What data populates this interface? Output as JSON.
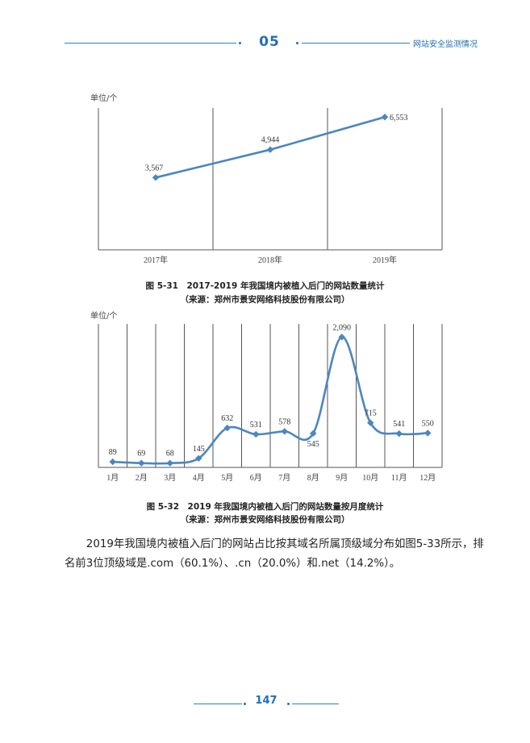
{
  "header": {
    "chapter": "05",
    "title": "网站安全监测情况"
  },
  "charts": {
    "yearly": {
      "caption": "图 5-31　2017-2019 年我国境内被植入后门的网站数量统计",
      "source": "（来源：郑州市景安网络科技股份有限公司）"
    },
    "monthly": {
      "caption": "图 5-32　2019 年我国境内被植入后门的网站数量按月度统计",
      "source": "（来源：郑州市景安网络科技股份有限公司）"
    }
  },
  "paragraph": "2019年我国境内被植入后门的网站占比按其域名所属顶级域分布如图5-33所示，排名前3位顶级域是.com（60.1%）、.cn（20.0%）和.net（14.2%）。",
  "footer": {
    "page_number": "147"
  },
  "colors": {
    "accent": "#1f6fb5",
    "series": "#4a86c0",
    "grid": "#555555"
  },
  "chart_data": [
    {
      "type": "line",
      "ylabel": "单位/个",
      "categories": [
        "2017年",
        "2018年",
        "2019年"
      ],
      "values": [
        3567,
        4944,
        6553
      ],
      "data_labels": [
        "3,567",
        "4,944",
        "6,553"
      ],
      "ylim": [
        0,
        7000
      ],
      "grid": "vertical",
      "marker": "diamond"
    },
    {
      "type": "line",
      "ylabel": "单位/个",
      "categories": [
        "1月",
        "2月",
        "3月",
        "4月",
        "5月",
        "6月",
        "7月",
        "8月",
        "9月",
        "10月",
        "11月",
        "12月"
      ],
      "values": [
        89,
        69,
        68,
        145,
        632,
        531,
        578,
        545,
        2090,
        715,
        541,
        550
      ],
      "data_labels": [
        "89",
        "69",
        "68",
        "145",
        "632",
        "531",
        "578",
        "545",
        "2,090",
        "715",
        "541",
        "550"
      ],
      "ylim": [
        0,
        2300
      ],
      "grid": "vertical",
      "marker": "diamond",
      "smooth": true
    }
  ]
}
